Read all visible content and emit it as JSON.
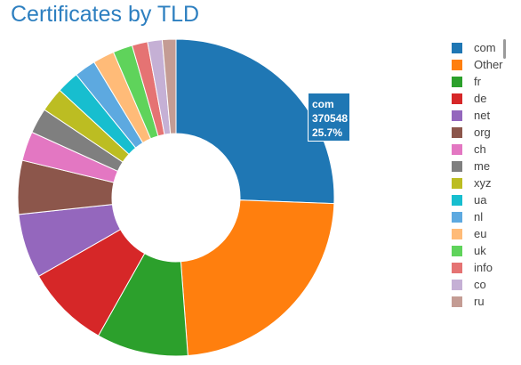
{
  "chart_data": {
    "type": "pie",
    "title": "Certificates by TLD",
    "hole": true,
    "legend_position": "right",
    "slices": [
      {
        "label": "com",
        "value": 25.7,
        "color": "#1f77b4"
      },
      {
        "label": "Other",
        "value": 23.3,
        "color": "#ff7f0e"
      },
      {
        "label": "fr",
        "value": 9.4,
        "color": "#2ca02c"
      },
      {
        "label": "de",
        "value": 8.6,
        "color": "#d62728"
      },
      {
        "label": "net",
        "value": 6.6,
        "color": "#9467bd"
      },
      {
        "label": "org",
        "value": 5.5,
        "color": "#8c564b"
      },
      {
        "label": "ch",
        "value": 3.0,
        "color": "#e377c2"
      },
      {
        "label": "me",
        "value": 2.6,
        "color": "#7f7f7f"
      },
      {
        "label": "xyz",
        "value": 2.5,
        "color": "#bcbd22"
      },
      {
        "label": "ua",
        "value": 2.3,
        "color": "#17becf"
      },
      {
        "label": "nl",
        "value": 2.2,
        "color": "#5da9e0"
      },
      {
        "label": "eu",
        "value": 2.2,
        "color": "#ffbb78"
      },
      {
        "label": "uk",
        "value": 2.0,
        "color": "#5fd35b"
      },
      {
        "label": "info",
        "value": 1.6,
        "color": "#e57373"
      },
      {
        "label": "co",
        "value": 1.5,
        "color": "#c5b0d5"
      },
      {
        "label": "ru",
        "value": 1.4,
        "color": "#c49c94"
      }
    ]
  },
  "tooltip": {
    "label": "com",
    "value": "370548",
    "percent": "25.7%",
    "color": "#1f77b4"
  }
}
